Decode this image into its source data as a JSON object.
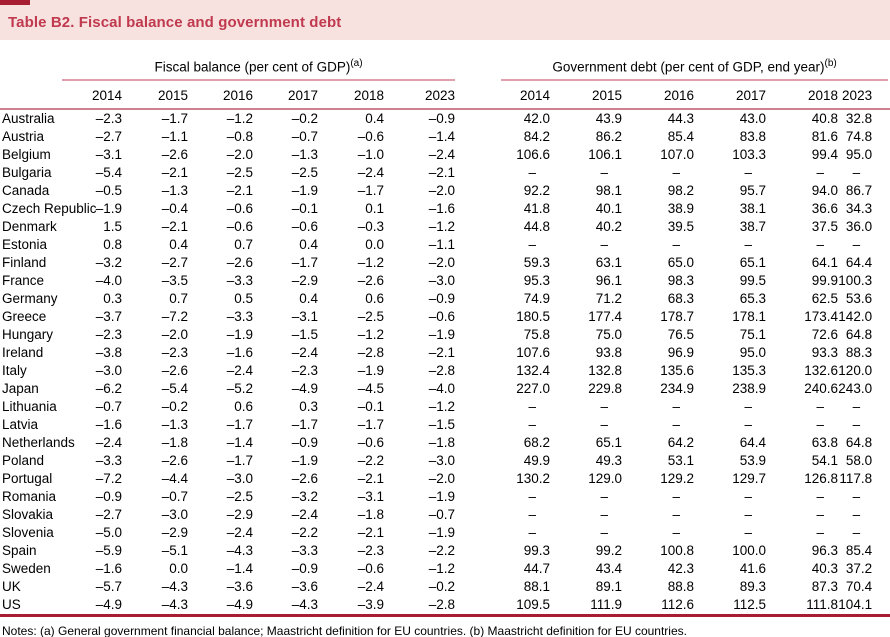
{
  "title": "Table B2. Fiscal balance and government debt",
  "column_groups": [
    {
      "label": "Fiscal balance (per cent of GDP)",
      "sup": "(a)"
    },
    {
      "label": "Government debt (per cent of GDP, end year)",
      "sup": "(b)"
    }
  ],
  "years": [
    "2014",
    "2015",
    "2016",
    "2017",
    "2018",
    "2023"
  ],
  "rows": [
    {
      "country": "Australia",
      "fiscal": [
        "–2.3",
        "–1.7",
        "–1.2",
        "–0.2",
        "0.4",
        "–0.9"
      ],
      "debt": [
        "42.0",
        "43.9",
        "44.3",
        "43.0",
        "40.8",
        "32.8"
      ]
    },
    {
      "country": "Austria",
      "fiscal": [
        "–2.7",
        "–1.1",
        "–0.8",
        "–0.7",
        "–0.6",
        "–1.4"
      ],
      "debt": [
        "84.2",
        "86.2",
        "85.4",
        "83.8",
        "81.6",
        "74.8"
      ]
    },
    {
      "country": "Belgium",
      "fiscal": [
        "–3.1",
        "–2.6",
        "–2.0",
        "–1.3",
        "–1.0",
        "–2.4"
      ],
      "debt": [
        "106.6",
        "106.1",
        "107.0",
        "103.3",
        "99.4",
        "95.0"
      ]
    },
    {
      "country": "Bulgaria",
      "fiscal": [
        "–5.4",
        "–2.1",
        "–2.5",
        "–2.5",
        "–2.4",
        "–2.1"
      ],
      "debt": [
        "–",
        "–",
        "–",
        "–",
        "–",
        "–"
      ]
    },
    {
      "country": "Canada",
      "fiscal": [
        "–0.5",
        "–1.3",
        "–2.1",
        "–1.9",
        "–1.7",
        "–2.0"
      ],
      "debt": [
        "92.2",
        "98.1",
        "98.2",
        "95.7",
        "94.0",
        "86.7"
      ]
    },
    {
      "country": "Czech Republic",
      "fiscal": [
        "–1.9",
        "–0.4",
        "–0.6",
        "–0.1",
        "0.1",
        "–1.6"
      ],
      "debt": [
        "41.8",
        "40.1",
        "38.9",
        "38.1",
        "36.6",
        "34.3"
      ]
    },
    {
      "country": "Denmark",
      "fiscal": [
        "1.5",
        "–2.1",
        "–0.6",
        "–0.6",
        "–0.3",
        "–1.2"
      ],
      "debt": [
        "44.8",
        "40.2",
        "39.5",
        "38.7",
        "37.5",
        "36.0"
      ]
    },
    {
      "country": "Estonia",
      "fiscal": [
        "0.8",
        "0.4",
        "0.7",
        "0.4",
        "0.0",
        "–1.1"
      ],
      "debt": [
        "–",
        "–",
        "–",
        "–",
        "–",
        "–"
      ]
    },
    {
      "country": "Finland",
      "fiscal": [
        "–3.2",
        "–2.7",
        "–2.6",
        "–1.7",
        "–1.2",
        "–2.0"
      ],
      "debt": [
        "59.3",
        "63.1",
        "65.0",
        "65.1",
        "64.1",
        "64.4"
      ]
    },
    {
      "country": "France",
      "fiscal": [
        "–4.0",
        "–3.5",
        "–3.3",
        "–2.9",
        "–2.6",
        "–3.0"
      ],
      "debt": [
        "95.3",
        "96.1",
        "98.3",
        "99.5",
        "99.9",
        "100.3"
      ]
    },
    {
      "country": "Germany",
      "fiscal": [
        "0.3",
        "0.7",
        "0.5",
        "0.4",
        "0.6",
        "–0.9"
      ],
      "debt": [
        "74.9",
        "71.2",
        "68.3",
        "65.3",
        "62.5",
        "53.6"
      ]
    },
    {
      "country": "Greece",
      "fiscal": [
        "–3.7",
        "–7.2",
        "–3.3",
        "–3.1",
        "–2.5",
        "–0.6"
      ],
      "debt": [
        "180.5",
        "177.4",
        "178.7",
        "178.1",
        "173.4",
        "142.0"
      ]
    },
    {
      "country": "Hungary",
      "fiscal": [
        "–2.3",
        "–2.0",
        "–1.9",
        "–1.5",
        "–1.2",
        "–1.9"
      ],
      "debt": [
        "75.8",
        "75.0",
        "76.5",
        "75.1",
        "72.6",
        "64.8"
      ]
    },
    {
      "country": "Ireland",
      "fiscal": [
        "–3.8",
        "–2.3",
        "–1.6",
        "–2.4",
        "–2.8",
        "–2.1"
      ],
      "debt": [
        "107.6",
        "93.8",
        "96.9",
        "95.0",
        "93.3",
        "88.3"
      ]
    },
    {
      "country": "Italy",
      "fiscal": [
        "–3.0",
        "–2.6",
        "–2.4",
        "–2.3",
        "–1.9",
        "–2.8"
      ],
      "debt": [
        "132.4",
        "132.8",
        "135.6",
        "135.3",
        "132.6",
        "120.0"
      ]
    },
    {
      "country": "Japan",
      "fiscal": [
        "–6.2",
        "–5.4",
        "–5.2",
        "–4.9",
        "–4.5",
        "–4.0"
      ],
      "debt": [
        "227.0",
        "229.8",
        "234.9",
        "238.9",
        "240.6",
        "243.0"
      ]
    },
    {
      "country": "Lithuania",
      "fiscal": [
        "–0.7",
        "–0.2",
        "0.6",
        "0.3",
        "–0.1",
        "–1.2"
      ],
      "debt": [
        "–",
        "–",
        "–",
        "–",
        "–",
        "–"
      ]
    },
    {
      "country": "Latvia",
      "fiscal": [
        "–1.6",
        "–1.3",
        "–1.7",
        "–1.7",
        "–1.7",
        "–1.5"
      ],
      "debt": [
        "–",
        "–",
        "–",
        "–",
        "–",
        "–"
      ]
    },
    {
      "country": "Netherlands",
      "fiscal": [
        "–2.4",
        "–1.8",
        "–1.4",
        "–0.9",
        "–0.6",
        "–1.8"
      ],
      "debt": [
        "68.2",
        "65.1",
        "64.2",
        "64.4",
        "63.8",
        "64.8"
      ]
    },
    {
      "country": "Poland",
      "fiscal": [
        "–3.3",
        "–2.6",
        "–1.7",
        "–1.9",
        "–2.2",
        "–3.0"
      ],
      "debt": [
        "49.9",
        "49.3",
        "53.1",
        "53.9",
        "54.1",
        "58.0"
      ]
    },
    {
      "country": "Portugal",
      "fiscal": [
        "–7.2",
        "–4.4",
        "–3.0",
        "–2.6",
        "–2.1",
        "–2.0"
      ],
      "debt": [
        "130.2",
        "129.0",
        "129.2",
        "129.7",
        "126.8",
        "117.8"
      ]
    },
    {
      "country": "Romania",
      "fiscal": [
        "–0.9",
        "–0.7",
        "–2.5",
        "–3.2",
        "–3.1",
        "–1.9"
      ],
      "debt": [
        "–",
        "–",
        "–",
        "–",
        "–",
        "–"
      ]
    },
    {
      "country": "Slovakia",
      "fiscal": [
        "–2.7",
        "–3.0",
        "–2.9",
        "–2.4",
        "–1.8",
        "–0.7"
      ],
      "debt": [
        "–",
        "–",
        "–",
        "–",
        "–",
        "–"
      ]
    },
    {
      "country": "Slovenia",
      "fiscal": [
        "–5.0",
        "–2.9",
        "–2.4",
        "–2.2",
        "–2.1",
        "–1.9"
      ],
      "debt": [
        "–",
        "–",
        "–",
        "–",
        "–",
        "–"
      ]
    },
    {
      "country": "Spain",
      "fiscal": [
        "–5.9",
        "–5.1",
        "–4.3",
        "–3.3",
        "–2.3",
        "–2.2"
      ],
      "debt": [
        "99.3",
        "99.2",
        "100.8",
        "100.0",
        "96.3",
        "85.4"
      ]
    },
    {
      "country": "Sweden",
      "fiscal": [
        "–1.6",
        "0.0",
        "–1.4",
        "–0.9",
        "–0.6",
        "–1.2"
      ],
      "debt": [
        "44.7",
        "43.4",
        "42.3",
        "41.6",
        "40.3",
        "37.2"
      ]
    },
    {
      "country": "UK",
      "fiscal": [
        "–5.7",
        "–4.3",
        "–3.6",
        "–3.6",
        "–2.4",
        "–0.2"
      ],
      "debt": [
        "88.1",
        "89.1",
        "88.8",
        "89.3",
        "87.3",
        "70.4"
      ]
    },
    {
      "country": "US",
      "fiscal": [
        "–4.9",
        "–4.3",
        "–4.9",
        "–4.3",
        "–3.9",
        "–2.8"
      ],
      "debt": [
        "109.5",
        "111.9",
        "112.6",
        "112.5",
        "111.8",
        "104.1"
      ]
    }
  ],
  "notes": "Notes: (a) General government financial balance; Maastricht definition for EU countries. (b) Maastricht definition for EU countries.",
  "colors": {
    "band_background": "#f7e2df",
    "title_text": "#c0394f",
    "accent_dark_red": "#a71e33",
    "rule_pink": "#dfa0ab",
    "rule_mid_pink": "#cb8192"
  }
}
